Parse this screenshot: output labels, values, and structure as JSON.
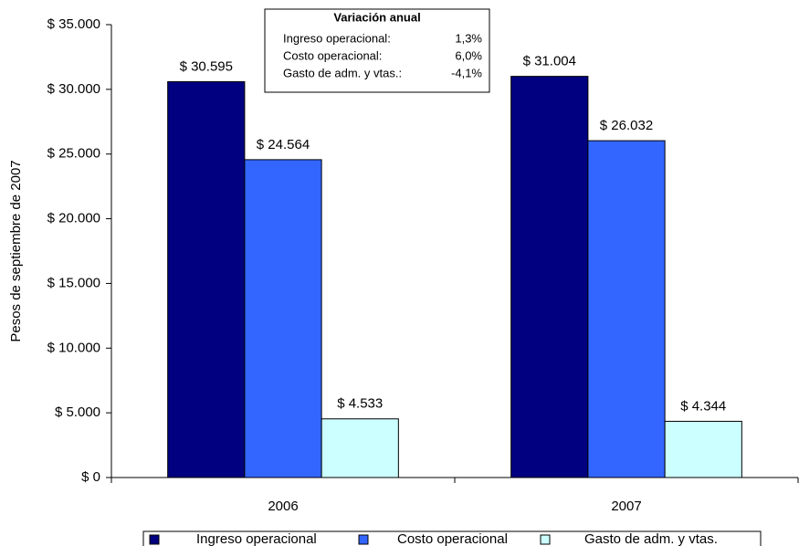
{
  "chart_data": {
    "type": "bar",
    "y_label": "Pesos de septiembre de 2007",
    "categories": [
      "2006",
      "2007"
    ],
    "series": [
      {
        "name": "Ingreso operacional",
        "color": "#000080",
        "values": [
          30595,
          31004
        ],
        "value_labels": [
          "$ 30.595",
          "$ 31.004"
        ]
      },
      {
        "name": "Costo operacional",
        "color": "#3366ff",
        "values": [
          24564,
          26032
        ],
        "value_labels": [
          "$ 24.564",
          "$ 26.032"
        ]
      },
      {
        "name": "Gasto de adm. y vtas.",
        "color": "#ccffff",
        "values": [
          4533,
          4344
        ],
        "value_labels": [
          "$ 4.533",
          "$ 4.344"
        ]
      }
    ],
    "ylim": [
      0,
      35000
    ],
    "yticks": [
      {
        "value": 0,
        "label": "$ 0"
      },
      {
        "value": 5000,
        "label": "$ 5.000"
      },
      {
        "value": 10000,
        "label": "$ 10.000"
      },
      {
        "value": 15000,
        "label": "$ 15.000"
      },
      {
        "value": 20000,
        "label": "$ 20.000"
      },
      {
        "value": 25000,
        "label": "$ 25.000"
      },
      {
        "value": 30000,
        "label": "$ 30.000"
      },
      {
        "value": 35000,
        "label": "$ 35.000"
      }
    ],
    "grid": false,
    "legend": "bottom",
    "annotation": {
      "title": "Variación anual",
      "rows": [
        [
          "Ingreso operacional:",
          "1,3%"
        ],
        [
          "Costo operacional:",
          "6,0%"
        ],
        [
          "Gasto de adm. y vtas.:",
          "-4,1%"
        ]
      ]
    }
  }
}
